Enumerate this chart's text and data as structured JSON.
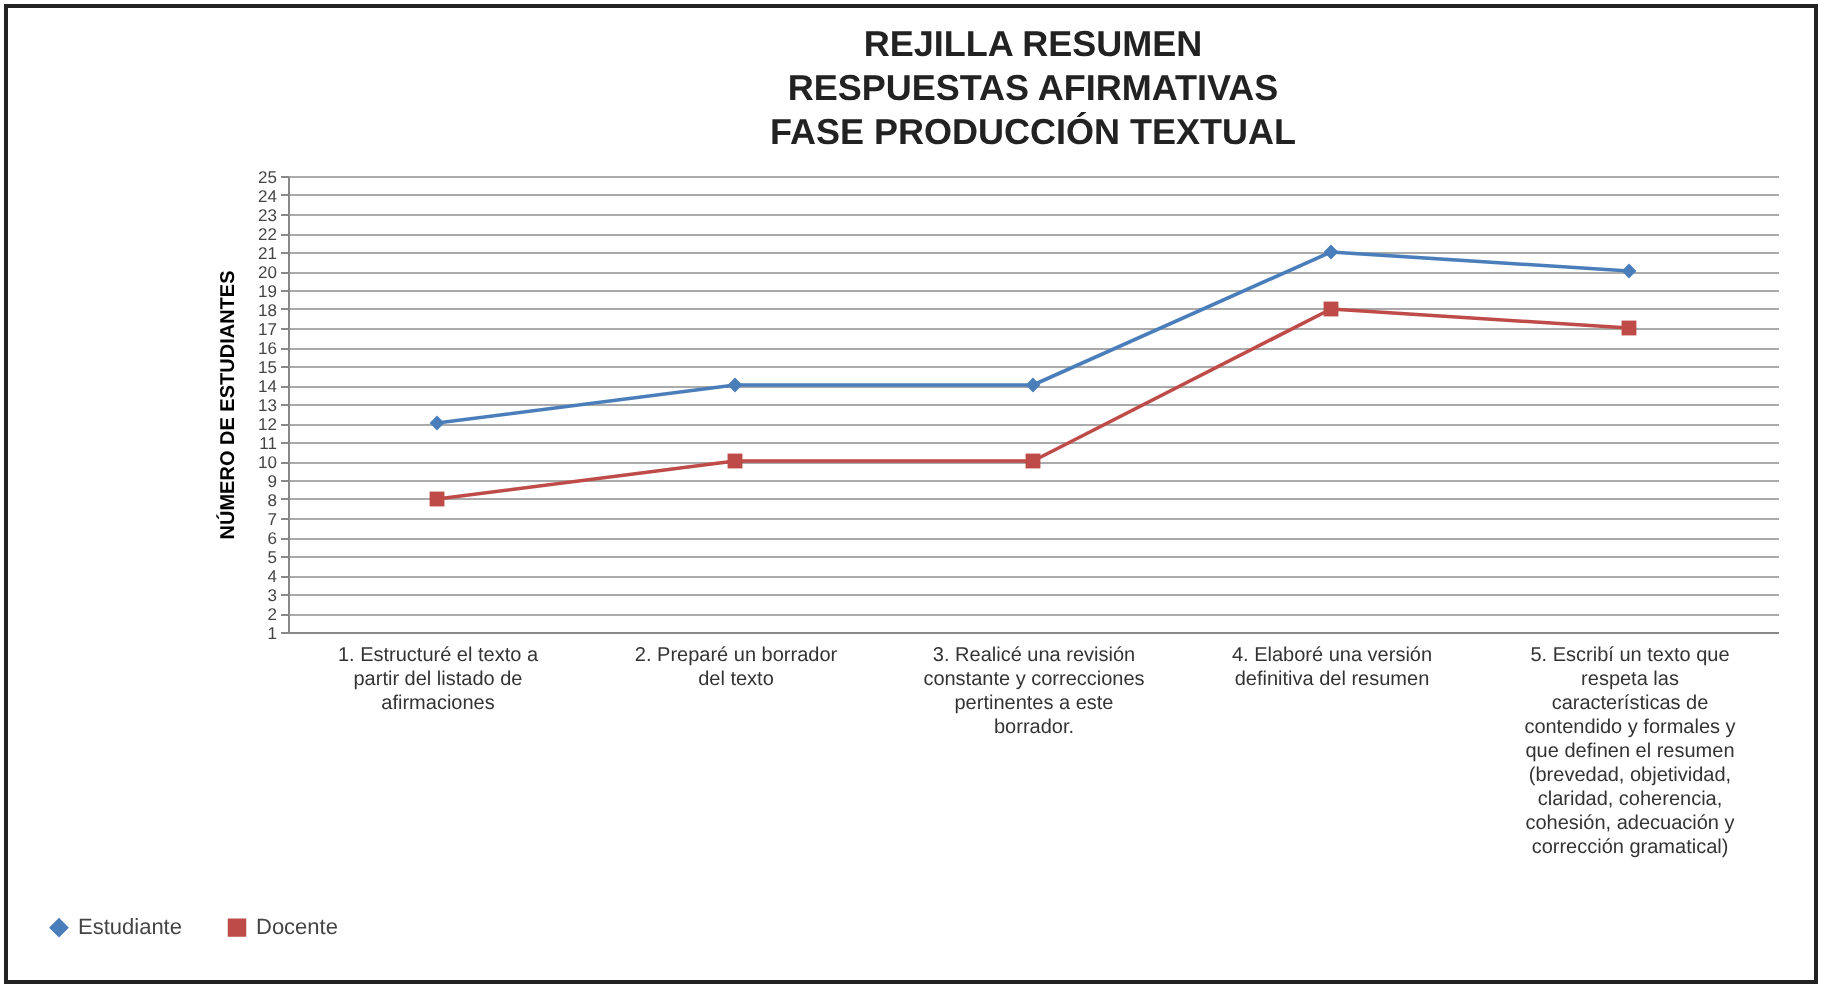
{
  "chart_data": {
    "type": "line",
    "title": "REJILLA RESUMEN RESPUESTAS AFIRMATIVAS FASE PRODUCCIÓN TEXTUAL",
    "ylabel": "NÚMERO DE ESTUDIANTES",
    "categories": [
      "1. Estructuré el texto a partir del listado de afirmaciones",
      "2. Preparé un borrador del texto",
      "3. Realicé una revisión constante y correcciones pertinentes a este borrador.",
      "4.  Elaboré una versión definitiva del resumen",
      "5. Escribí un  texto que respeta las características de contendido y formales y que definen el resumen (brevedad, objetividad, claridad, coherencia, cohesión, adecuación y corrección gramatical)"
    ],
    "series": [
      {
        "name": "Estudiante",
        "color": "#4a7ebb",
        "marker": "diamond",
        "values": [
          12,
          14,
          14,
          21,
          20
        ]
      },
      {
        "name": "Docente",
        "color": "#be4b48",
        "marker": "square",
        "values": [
          8,
          10,
          10,
          18,
          17
        ]
      }
    ],
    "ylim": [
      1,
      25
    ],
    "yticks": [
      1,
      2,
      3,
      4,
      5,
      6,
      7,
      8,
      9,
      10,
      11,
      12,
      13,
      14,
      15,
      16,
      17,
      18,
      19,
      20,
      21,
      22,
      23,
      24,
      25
    ],
    "grid": "y",
    "legend": "bottom left",
    "line_style": "solid"
  }
}
